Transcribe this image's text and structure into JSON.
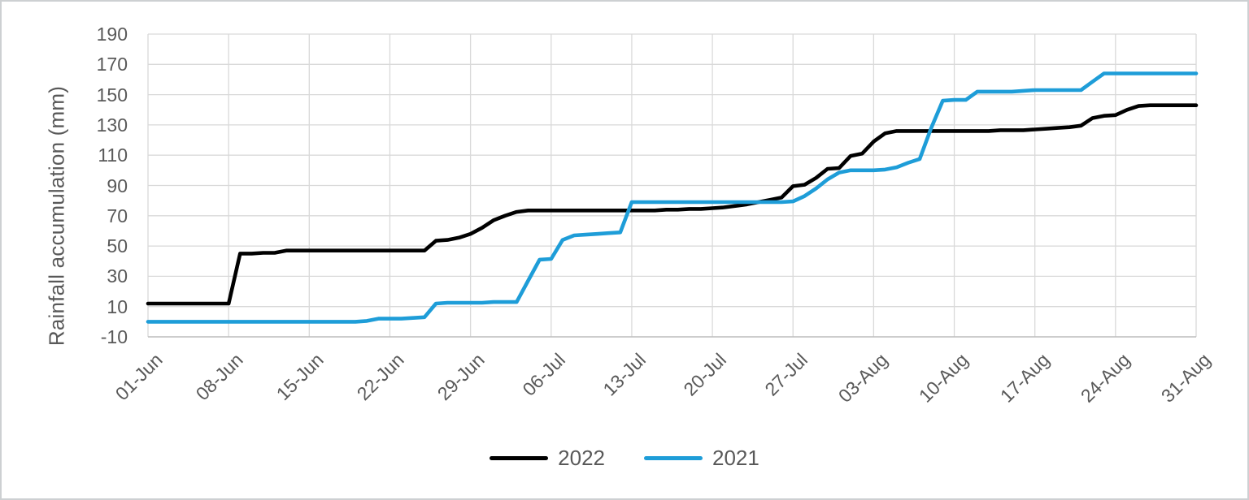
{
  "figure": {
    "background": "#ffffff",
    "frame_border_color": "#cdd0d2",
    "grid_color": "#d9d9d9",
    "axis_line_color": "#bfbfbf",
    "tick_text_color": "#595959"
  },
  "chart_data": {
    "type": "line",
    "title": "",
    "xlabel": "",
    "ylabel": "Rainfall accumulation (mm)",
    "ylim": [
      -10,
      190
    ],
    "y_tick_step": 20,
    "y_tick_labels": [
      "190",
      "170",
      "150",
      "130",
      "110",
      "90",
      "70",
      "50",
      "30",
      "10",
      "-10"
    ],
    "x_tick_labels": [
      "01-Jun",
      "08-Jun",
      "15-Jun",
      "22-Jun",
      "29-Jun",
      "06-Jul",
      "13-Jul",
      "20-Jul",
      "27-Jul",
      "03-Aug",
      "10-Aug",
      "17-Aug",
      "24-Aug",
      "31-Aug"
    ],
    "x_tick_day_index": [
      0,
      7,
      14,
      21,
      28,
      35,
      42,
      49,
      56,
      63,
      70,
      77,
      84,
      91
    ],
    "x_unit": "days since 01-Jun",
    "x_range": [
      0,
      91
    ],
    "grid": true,
    "legend_position": "bottom",
    "series": [
      {
        "name": "2022",
        "color": "#000000",
        "values": [
          12,
          12,
          12,
          12,
          12,
          12,
          12,
          12,
          45,
          45,
          45.5,
          45.5,
          47,
          47,
          47,
          47,
          47,
          47,
          47,
          47,
          47,
          47,
          47,
          47,
          47,
          53.5,
          54,
          55.5,
          58,
          62,
          67,
          70,
          72.5,
          73.5,
          73.5,
          73.5,
          73.5,
          73.5,
          73.5,
          73.5,
          73.5,
          73.5,
          73.5,
          73.5,
          73.5,
          74,
          74,
          74.5,
          74.5,
          75,
          75.5,
          76.5,
          77.5,
          79,
          80.5,
          82,
          89.5,
          90.5,
          95,
          101,
          101.5,
          109.5,
          111,
          119,
          124.5,
          126,
          126,
          126,
          126,
          126,
          126,
          126,
          126,
          126,
          126.5,
          126.5,
          126.5,
          127,
          127.5,
          128,
          128.5,
          129.5,
          134.5,
          136,
          136.5,
          140,
          142.5,
          143,
          143,
          143,
          143,
          143
        ]
      },
      {
        "name": "2021",
        "color": "#1e9dd8",
        "values": [
          0,
          0,
          0,
          0,
          0,
          0,
          0,
          0,
          0,
          0,
          0,
          0,
          0,
          0,
          0,
          0,
          0,
          0,
          0,
          0.5,
          2,
          2,
          2,
          2.5,
          3,
          12,
          12.5,
          12.5,
          12.5,
          12.5,
          13,
          13,
          13,
          27,
          41,
          41.5,
          54,
          57,
          57.5,
          58,
          58.5,
          59,
          79,
          79,
          79,
          79,
          79,
          79,
          79,
          79,
          79,
          79,
          79,
          79,
          79,
          79,
          79.5,
          83,
          88,
          94,
          98.5,
          100,
          100,
          100,
          100.5,
          102,
          105,
          107.5,
          128,
          146,
          146.5,
          146.5,
          152,
          152,
          152,
          152,
          152.5,
          153,
          153,
          153,
          153,
          153,
          158.5,
          164,
          164,
          164,
          164,
          164,
          164,
          164,
          164,
          164
        ]
      }
    ]
  }
}
